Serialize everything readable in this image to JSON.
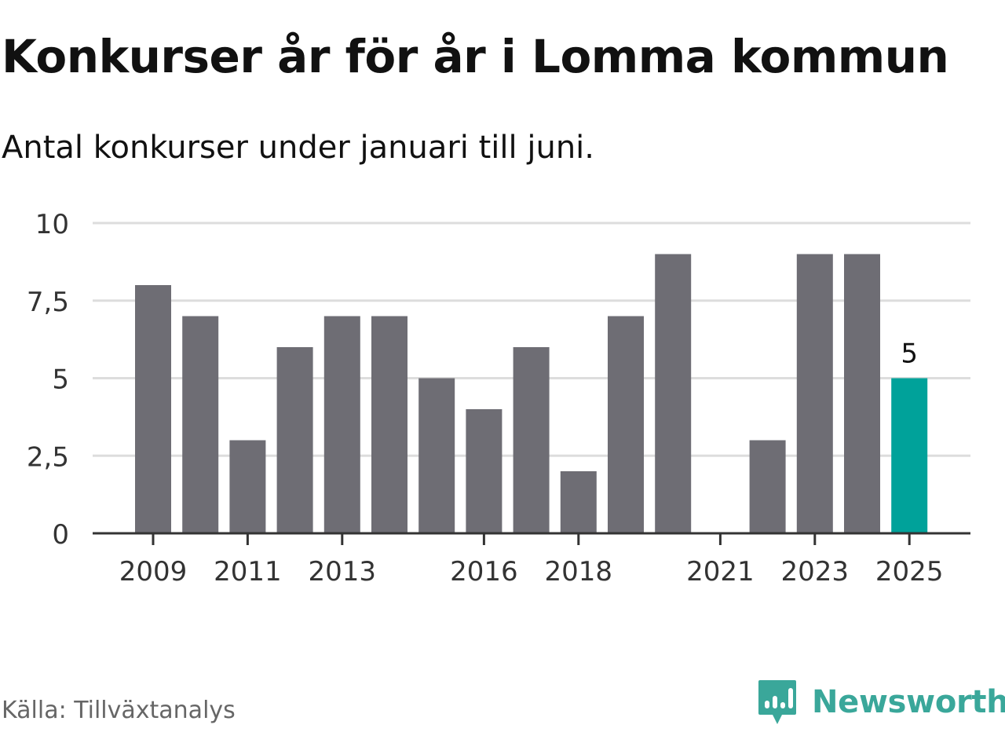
{
  "title": "Konkurser år för år i Lomma kommun",
  "subtitle": "Antal konkurser under januari till juni.",
  "source": "Källa: Tillväxtanalys",
  "brand": {
    "name": "Newsworthy",
    "icon": "newsworthy-logo-icon",
    "color": "#3aa79a"
  },
  "colors": {
    "bar": "#6e6d74",
    "highlight": "#00a29a",
    "grid": "#dddddd",
    "axis": "#333333"
  },
  "chart_data": {
    "type": "bar",
    "title": "Konkurser år för år i Lomma kommun",
    "subtitle": "Antal konkurser under januari till juni.",
    "categories": [
      "2009",
      "2010",
      "2011",
      "2012",
      "2013",
      "2014",
      "2015",
      "2016",
      "2017",
      "2018",
      "2019",
      "2020",
      "2021",
      "2022",
      "2023",
      "2024",
      "2025"
    ],
    "values": [
      8,
      7,
      3,
      6,
      7,
      7,
      5,
      4,
      6,
      2,
      7,
      9,
      0,
      3,
      9,
      9,
      5
    ],
    "highlight_index": 16,
    "data_labels": [
      {
        "category": "2025",
        "text": "5"
      }
    ],
    "x_tick_labels": [
      "2009",
      "2011",
      "2013",
      "2016",
      "2018",
      "2021",
      "2023",
      "2025"
    ],
    "y_ticks": [
      0,
      2.5,
      5,
      7.5,
      10
    ],
    "y_tick_labels": [
      "0",
      "2,5",
      "5",
      "7,5",
      "10"
    ],
    "ylim": [
      0,
      10
    ],
    "xlabel": "",
    "ylabel": "",
    "grid": true,
    "legend": "none"
  }
}
